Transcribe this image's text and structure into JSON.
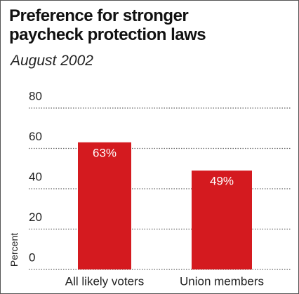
{
  "chart_data": {
    "type": "bar",
    "title": "Preference for stronger paycheck protection laws",
    "subtitle": "August 2002",
    "y_label": "Percent",
    "categories": [
      "All likely voters",
      "Union members"
    ],
    "values": [
      63,
      49
    ],
    "value_labels": [
      "63%",
      "49%"
    ],
    "color": "#d41a1f",
    "ylim": [
      0,
      80
    ],
    "yticks": [
      0,
      20,
      40,
      60,
      80
    ],
    "grid": true
  }
}
